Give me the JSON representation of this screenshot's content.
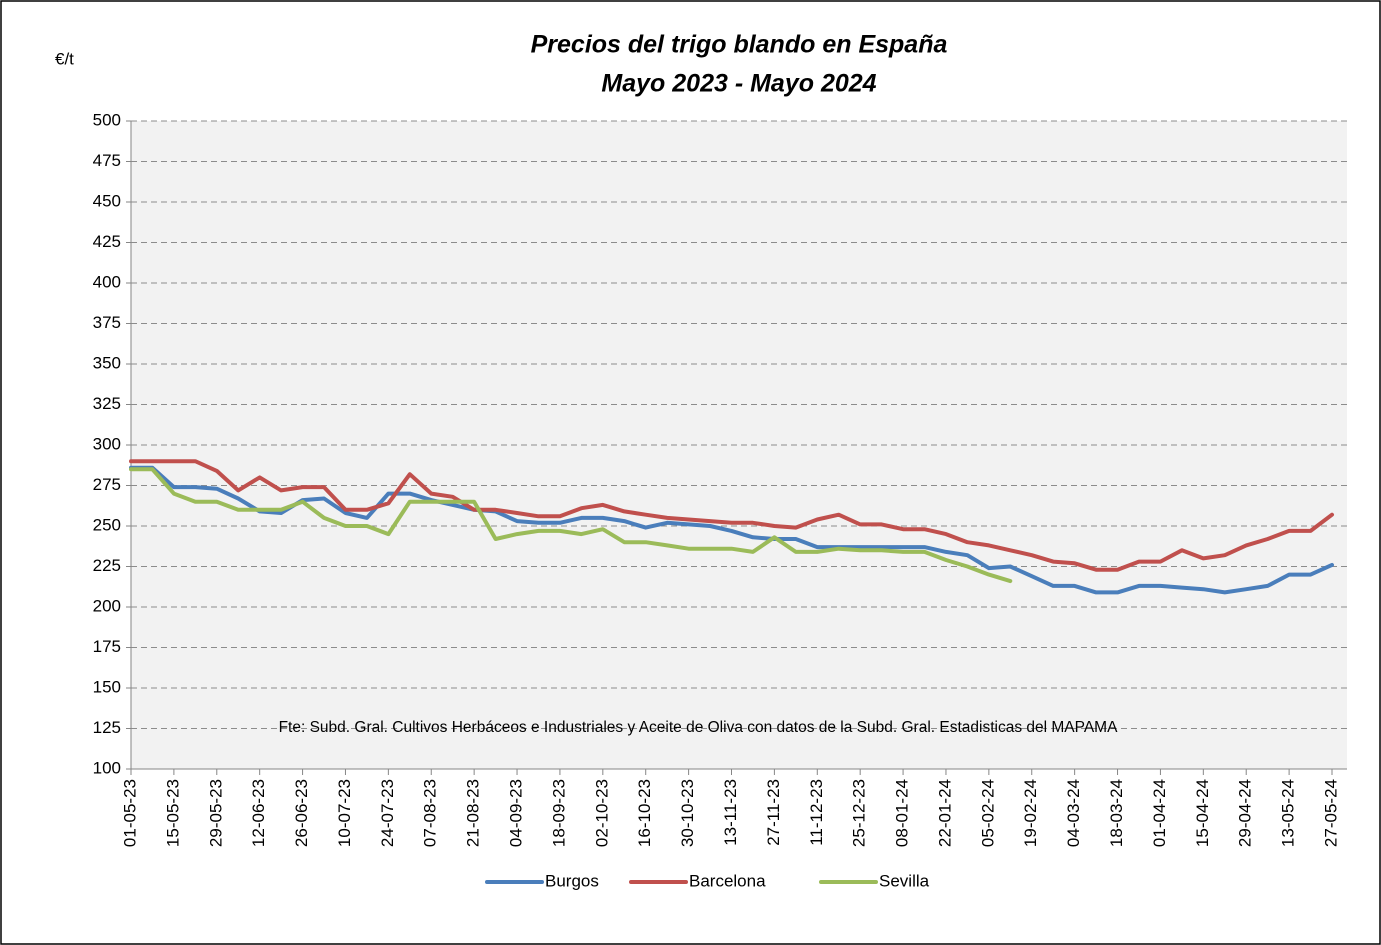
{
  "chart_data": {
    "type": "line",
    "title": "Precios del trigo blando en España",
    "subtitle": "Mayo 2023 - Mayo 2024",
    "y_label": "€/t",
    "annotation": "Fte: Subd. Gral. Cultivos Herbáceos e Industriales y Aceite de Oliva  con datos de la Subd. Gral. Estadisticas del MAPAMA",
    "categories": [
      "01-05-23",
      null,
      "15-05-23",
      null,
      "29-05-23",
      null,
      "12-06-23",
      null,
      "26-06-23",
      null,
      "10-07-23",
      null,
      "24-07-23",
      null,
      "07-08-23",
      null,
      "21-08-23",
      null,
      "04-09-23",
      null,
      "18-09-23",
      null,
      "02-10-23",
      null,
      "16-10-23",
      null,
      "30-10-23",
      null,
      "13-11-23",
      null,
      "27-11-23",
      null,
      "11-12-23",
      null,
      "25-12-23",
      null,
      "08-01-24",
      null,
      "22-01-24",
      null,
      "05-02-24",
      null,
      "19-02-24",
      null,
      "04-03-24",
      null,
      "18-03-24",
      null,
      "01-04-24",
      null,
      "15-04-24",
      null,
      "29-04-24",
      null,
      "13-05-24",
      null,
      "27-05-24"
    ],
    "series": [
      {
        "name": "Burgos",
        "color": "#4a7ebb",
        "values": [
          286,
          286,
          274,
          274,
          273,
          267,
          259,
          258,
          266,
          267,
          258,
          255,
          270,
          270,
          266,
          263,
          260,
          259,
          253,
          252,
          252,
          255,
          255,
          253,
          249,
          252,
          251,
          250,
          247,
          243,
          242,
          242,
          237,
          237,
          237,
          237,
          237,
          237,
          234,
          232,
          224,
          225,
          219,
          213,
          213,
          209,
          209,
          213,
          213,
          212,
          211,
          209,
          211,
          213,
          220,
          220,
          226
        ]
      },
      {
        "name": "Barcelona",
        "color": "#c0504d",
        "values": [
          290,
          290,
          290,
          290,
          284,
          272,
          280,
          272,
          274,
          274,
          260,
          260,
          264,
          282,
          270,
          268,
          260,
          260,
          258,
          256,
          256,
          261,
          263,
          259,
          257,
          255,
          254,
          253,
          252,
          252,
          250,
          249,
          254,
          257,
          251,
          251,
          248,
          248,
          245,
          240,
          238,
          235,
          232,
          228,
          227,
          223,
          223,
          228,
          228,
          235,
          230,
          232,
          238,
          242,
          247,
          247,
          257
        ]
      },
      {
        "name": "Sevilla",
        "color": "#9bbb59",
        "values": [
          285,
          285,
          270,
          265,
          265,
          260,
          260,
          260,
          265,
          255,
          250,
          250,
          245,
          265,
          265,
          265,
          265,
          242,
          245,
          247,
          247,
          245,
          248,
          240,
          240,
          238,
          236,
          236,
          236,
          234,
          243,
          234,
          234,
          236,
          235,
          235,
          234,
          234,
          229,
          225,
          220,
          216,
          null,
          null,
          null,
          null,
          null,
          null,
          null,
          null,
          null,
          null,
          null,
          null,
          null,
          null,
          null
        ]
      }
    ],
    "ylim": [
      100,
      500
    ],
    "yticks": [
      100,
      125,
      150,
      175,
      200,
      225,
      250,
      275,
      300,
      325,
      350,
      375,
      400,
      425,
      450,
      475,
      500
    ],
    "grid": true
  }
}
